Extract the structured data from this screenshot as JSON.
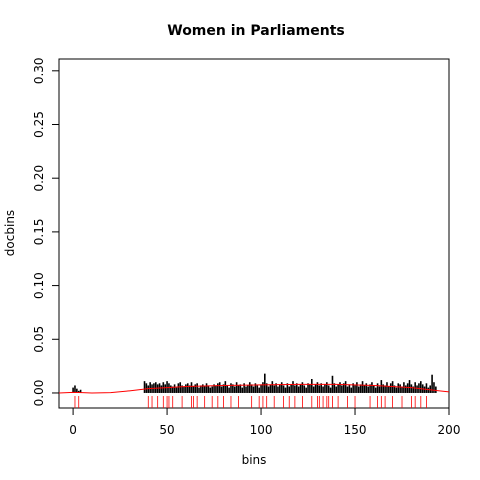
{
  "chart_data": {
    "type": "histogram-lines",
    "title": "Women in Parliaments",
    "xlabel": "bins",
    "ylabel": "docbins",
    "color": "#000000",
    "x": [
      0,
      1,
      2,
      3,
      4,
      5,
      6,
      7,
      8,
      9,
      10,
      11,
      12,
      13,
      14,
      15,
      16,
      17,
      18,
      19,
      20,
      21,
      22,
      23,
      24,
      25,
      26,
      27,
      28,
      29,
      30,
      31,
      32,
      33,
      34,
      35,
      36,
      37,
      38,
      39,
      40,
      41,
      42,
      43,
      44,
      45,
      46,
      47,
      48,
      49,
      50,
      51,
      52,
      53,
      54,
      55,
      56,
      57,
      58,
      59,
      60,
      61,
      62,
      63,
      64,
      65,
      66,
      67,
      68,
      69,
      70,
      71,
      72,
      73,
      74,
      75,
      76,
      77,
      78,
      79,
      80,
      81,
      82,
      83,
      84,
      85,
      86,
      87,
      88,
      89,
      90,
      91,
      92,
      93,
      94,
      95,
      96,
      97,
      98,
      99,
      100,
      101,
      102,
      103,
      104,
      105,
      106,
      107,
      108,
      109,
      110,
      111,
      112,
      113,
      114,
      115,
      116,
      117,
      118,
      119,
      120,
      121,
      122,
      123,
      124,
      125,
      126,
      127,
      128,
      129,
      130,
      131,
      132,
      133,
      134,
      135,
      136,
      137,
      138,
      139,
      140,
      141,
      142,
      143,
      144,
      145,
      146,
      147,
      148,
      149,
      150,
      151,
      152,
      153,
      154,
      155,
      156,
      157,
      158,
      159,
      160,
      161,
      162,
      163,
      164,
      165,
      166,
      167,
      168,
      169,
      170,
      171,
      172,
      173,
      174,
      175,
      176,
      177,
      178,
      179,
      180,
      181,
      182,
      183,
      184,
      185,
      186,
      187,
      188,
      189,
      190,
      191,
      192,
      193
    ],
    "values": [
      0.005,
      0.007,
      0.004,
      0.002,
      0.003,
      0,
      0,
      0,
      0,
      0,
      0,
      0,
      0,
      0,
      0,
      0,
      0,
      0,
      0,
      0,
      0,
      0,
      0,
      0,
      0,
      0,
      0,
      0,
      0,
      0,
      0,
      0,
      0,
      0,
      0,
      0,
      0,
      0,
      0.011,
      0.009,
      0.007,
      0.01,
      0.008,
      0.009,
      0.01,
      0.008,
      0.009,
      0.007,
      0.01,
      0.008,
      0.011,
      0.009,
      0.007,
      0.006,
      0.008,
      0.005,
      0.009,
      0.01,
      0.007,
      0.006,
      0.008,
      0.009,
      0.007,
      0.01,
      0.006,
      0.008,
      0.009,
      0.005,
      0.007,
      0.008,
      0.006,
      0.009,
      0.007,
      0.005,
      0.006,
      0.008,
      0.007,
      0.009,
      0.01,
      0.006,
      0.008,
      0.011,
      0.007,
      0.005,
      0.009,
      0.008,
      0.006,
      0.01,
      0.007,
      0.008,
      0.005,
      0.009,
      0.006,
      0.007,
      0.01,
      0.008,
      0.006,
      0.009,
      0.007,
      0.005,
      0.008,
      0.01,
      0.018,
      0.009,
      0.006,
      0.008,
      0.011,
      0.007,
      0.009,
      0.006,
      0.008,
      0.01,
      0.007,
      0.005,
      0.009,
      0.006,
      0.008,
      0.011,
      0.007,
      0.009,
      0.006,
      0.008,
      0.01,
      0.007,
      0.005,
      0.009,
      0.008,
      0.013,
      0.006,
      0.008,
      0.01,
      0.007,
      0.009,
      0.006,
      0.008,
      0.01,
      0.007,
      0.005,
      0.016,
      0.009,
      0.006,
      0.008,
      0.01,
      0.007,
      0.009,
      0.011,
      0.006,
      0.008,
      0.005,
      0.009,
      0.007,
      0.01,
      0.006,
      0.008,
      0.011,
      0.007,
      0.009,
      0.006,
      0.008,
      0.01,
      0.007,
      0.005,
      0.009,
      0.006,
      0.012,
      0.008,
      0.007,
      0.01,
      0.006,
      0.009,
      0.011,
      0.007,
      0.005,
      0.009,
      0.008,
      0.006,
      0.01,
      0.007,
      0.009,
      0.012,
      0.008,
      0.006,
      0.01,
      0.007,
      0.009,
      0.011,
      0.008,
      0.006,
      0.009,
      0.005,
      0.007,
      0.017,
      0.01,
      0.006
    ],
    "curve": {
      "color": "#ff0000",
      "x": [
        -7.5,
        0,
        5,
        10,
        20,
        30,
        40,
        50,
        60,
        80,
        100,
        120,
        140,
        160,
        180,
        195,
        200
      ],
      "values": [
        0.0,
        0.0005,
        0.0003,
        0.0,
        0.0003,
        0.002,
        0.004,
        0.005,
        0.006,
        0.007,
        0.0075,
        0.008,
        0.008,
        0.007,
        0.005,
        0.002,
        0.001
      ]
    },
    "rug": {
      "color": "#ff0000",
      "x": [
        1,
        3,
        40,
        42,
        45,
        48,
        50,
        51,
        53,
        58,
        63,
        64,
        66,
        70,
        74,
        77,
        80,
        84,
        88,
        95,
        99,
        101,
        103,
        107,
        112,
        115,
        118,
        122,
        127,
        130,
        131,
        133,
        135,
        136,
        138,
        141,
        146,
        150,
        158,
        162,
        164,
        166,
        170,
        175,
        180,
        182,
        185,
        188
      ]
    },
    "xlim": [
      -7.5,
      200
    ],
    "ylim": [
      -0.014,
      0.311
    ],
    "xticks": [
      0,
      50,
      100,
      150,
      200
    ],
    "yticks": [
      {
        "value": 0,
        "label": "0.00"
      },
      {
        "value": 0.05,
        "label": "0.05"
      },
      {
        "value": 0.1,
        "label": "0.10"
      },
      {
        "value": 0.15,
        "label": "0.15"
      },
      {
        "value": 0.2,
        "label": "0.20"
      },
      {
        "value": 0.25,
        "label": "0.25"
      },
      {
        "value": 0.3,
        "label": "0.30"
      }
    ]
  }
}
